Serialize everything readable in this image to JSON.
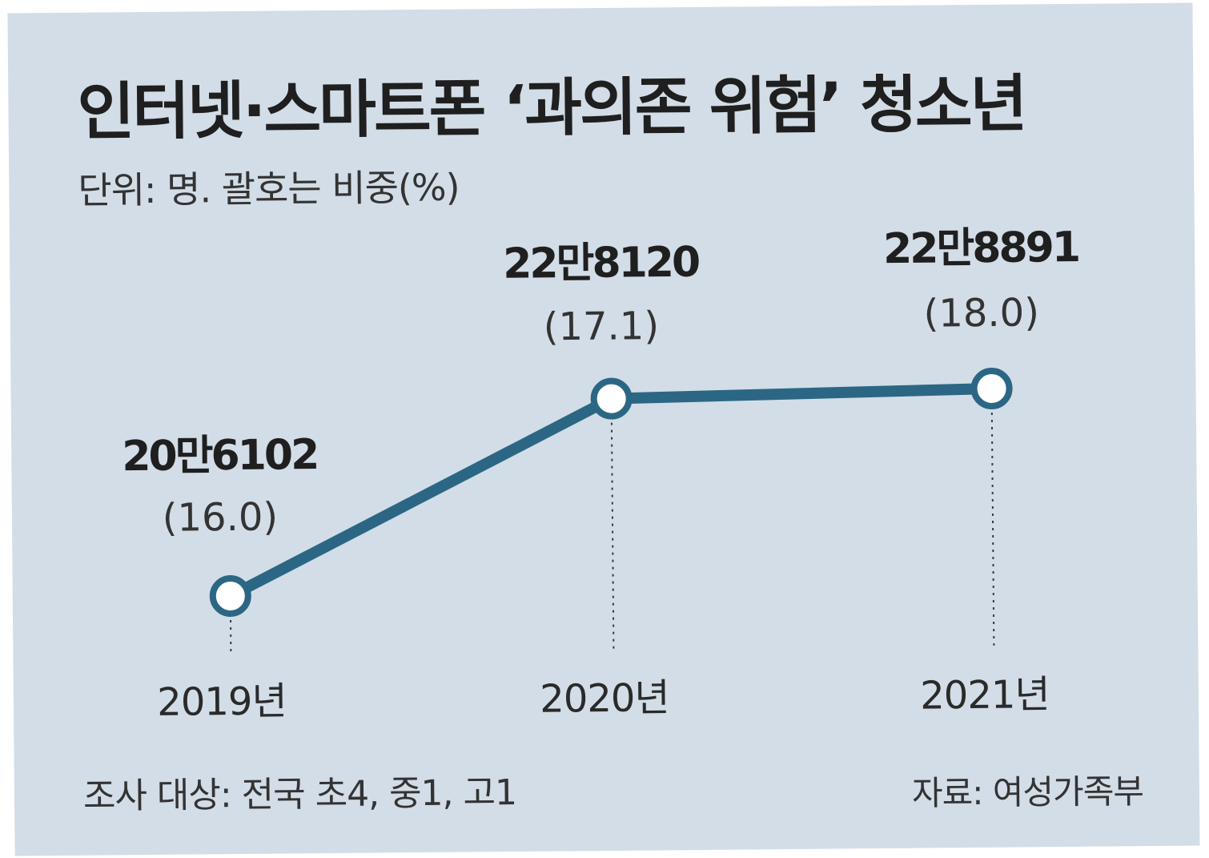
{
  "chart_data": {
    "type": "line",
    "title": "인터넷·스마트폰 ‘과의존 위험’ 청소년",
    "subtitle": "단위: 명. 괄호는 비중(%)",
    "categories": [
      "2019년",
      "2020년",
      "2021년"
    ],
    "series": [
      {
        "values": [
          206102,
          228120,
          228891
        ],
        "value_labels": [
          "20만6102",
          "22만8120",
          "22만8891"
        ],
        "shares": [
          16.0,
          17.1,
          18.0
        ],
        "share_labels": [
          "(16.0)",
          "(17.1)",
          "(18.0)"
        ],
        "color": "#2b6784"
      }
    ],
    "xlabel": "",
    "ylabel": "",
    "grid": false,
    "legend": "none"
  },
  "footnote": {
    "survey": "조사 대상: 전국 초4, 중1, 고1",
    "source": "자료: 여성가족부"
  },
  "colors": {
    "background": "#d3dde7",
    "line": "#2b6784",
    "marker_fill": "#ffffff"
  }
}
